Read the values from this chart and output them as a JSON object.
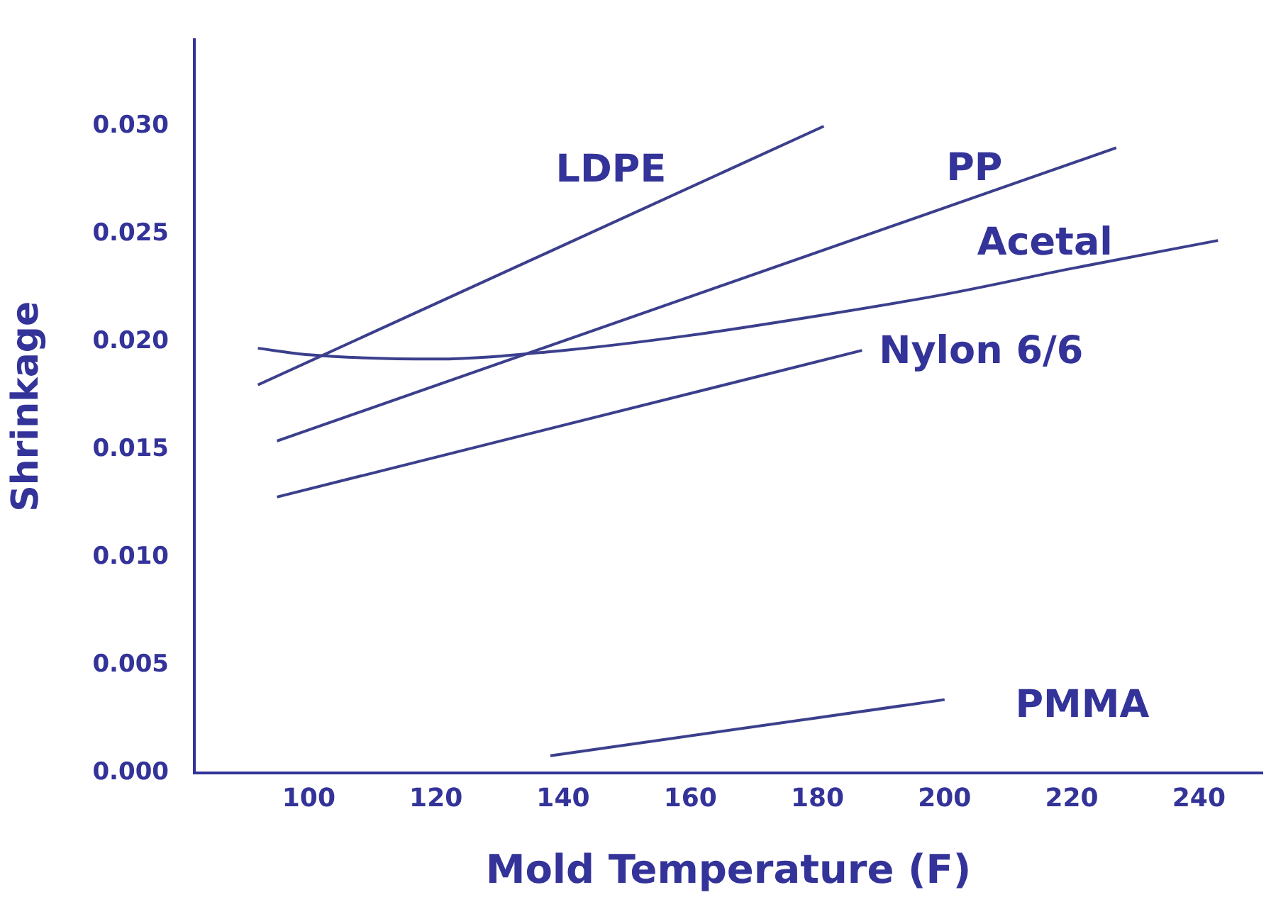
{
  "chart_data": {
    "type": "line",
    "xlabel": "Mold Temperature (F)",
    "ylabel": "Shrinkage",
    "xlim": [
      82,
      250
    ],
    "xticks": [
      100,
      120,
      140,
      160,
      180,
      200,
      220,
      240
    ],
    "ylim": [
      0,
      0.034
    ],
    "yticks": [
      {
        "value": 0,
        "label": "0.000"
      },
      {
        "value": 0.005,
        "label": "0.005"
      },
      {
        "value": 0.01,
        "label": "0.010"
      },
      {
        "value": 0.015,
        "label": "0.015"
      },
      {
        "value": 0.02,
        "label": "0.020"
      },
      {
        "value": 0.025,
        "label": "0.025"
      },
      {
        "value": 0.03,
        "label": "0.030"
      }
    ],
    "grid": false,
    "legend": false,
    "marker": "none",
    "line_style": "solid",
    "series": [
      {
        "name": "LDPE",
        "color": "#3b3f8c",
        "x": [
          92,
          181
        ],
        "values": [
          0.018,
          0.03
        ]
      },
      {
        "name": "PP",
        "color": "#3b3f8c",
        "x": [
          95,
          227
        ],
        "values": [
          0.0154,
          0.029
        ]
      },
      {
        "name": "Acetal",
        "color": "#3b3f8c",
        "x": [
          92,
          100,
          120,
          140,
          160,
          180,
          200,
          220,
          243
        ],
        "values": [
          0.0197,
          0.0194,
          0.0192,
          0.0196,
          0.0203,
          0.0212,
          0.0222,
          0.0234,
          0.0247
        ]
      },
      {
        "name": "Nylon 6/6",
        "color": "#3b3f8c",
        "x": [
          95,
          187
        ],
        "values": [
          0.0128,
          0.0196
        ]
      },
      {
        "name": "PMMA",
        "color": "#3b3f8c",
        "x": [
          138,
          200
        ],
        "values": [
          0.0008,
          0.0034
        ]
      }
    ]
  }
}
